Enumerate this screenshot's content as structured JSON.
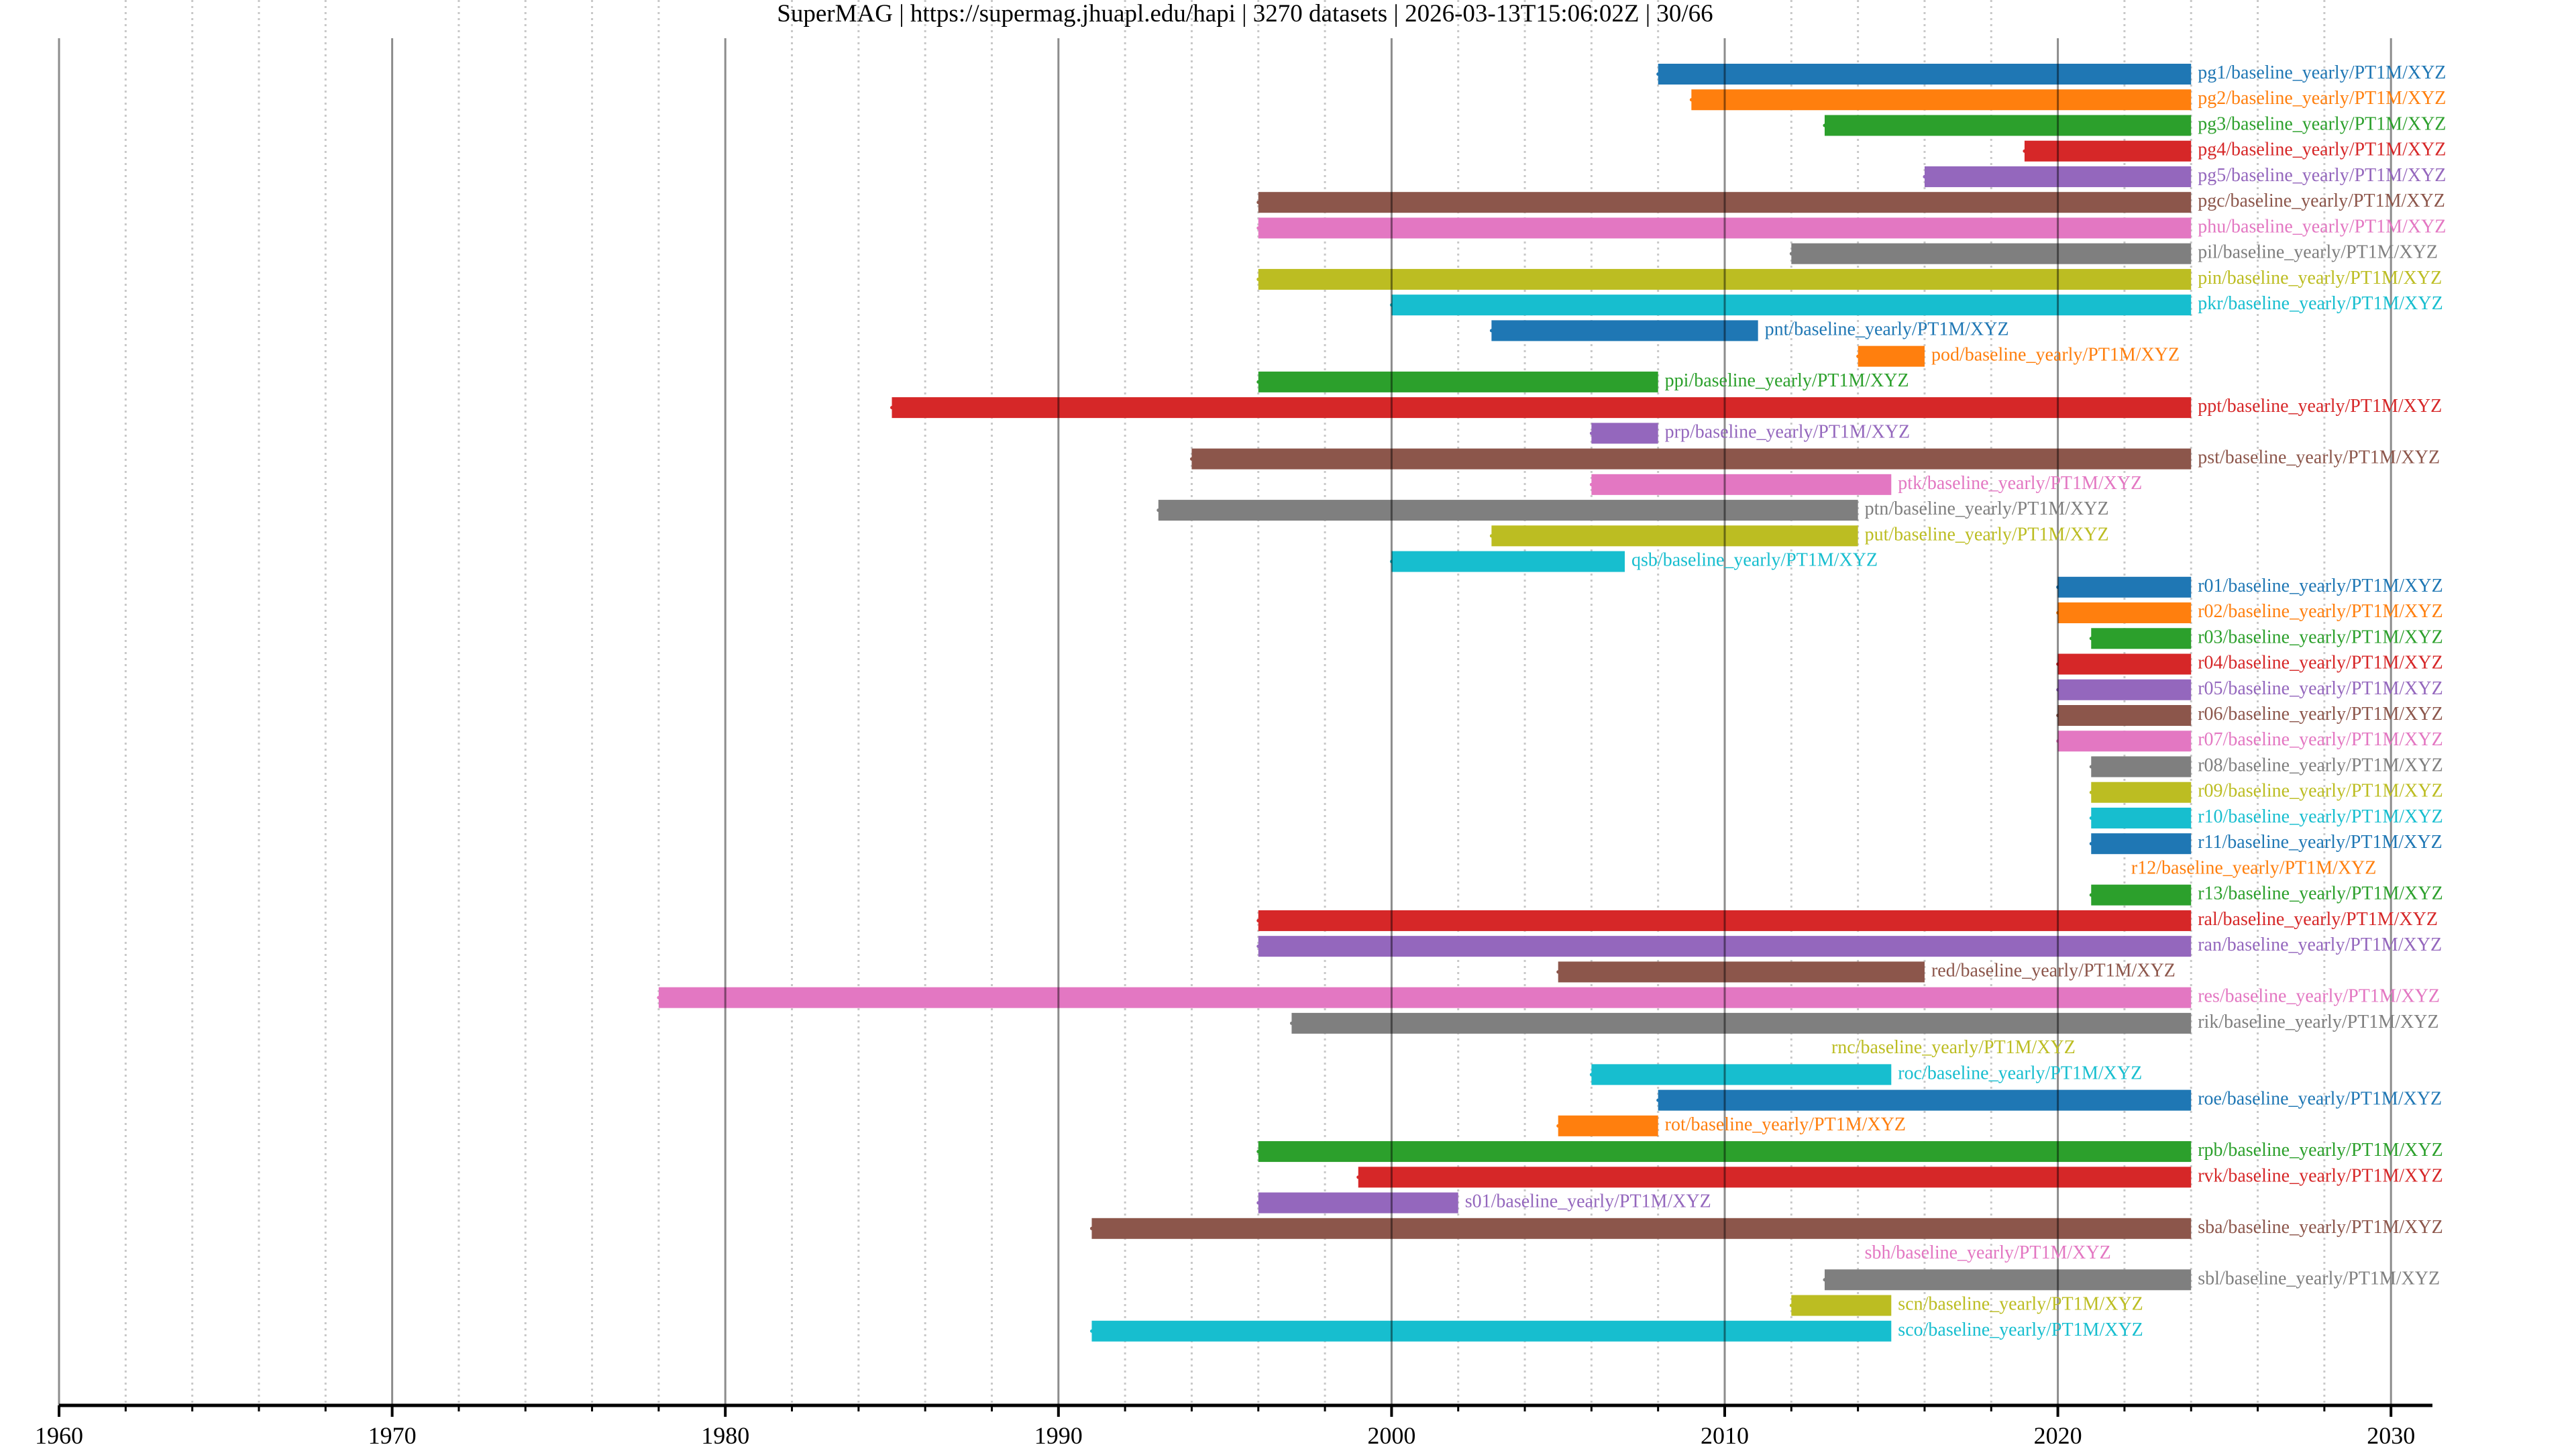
{
  "header": {
    "title": "SuperMAG | https://supermag.jhuapl.edu/hapi | 3270 datasets | 2026-03-13T15:06:02Z | 30/66"
  },
  "chart_data": {
    "type": "timeline",
    "title": "SuperMAG | https://supermag.jhuapl.edu/hapi | 3270 datasets | 2026-03-13T15:06:02Z | 30/66",
    "xlabel": "",
    "ylabel": "",
    "xlim": [
      1960,
      2031.5
    ],
    "x_major_ticks": [
      1960,
      1970,
      1980,
      1990,
      2000,
      2010,
      2020,
      2030
    ],
    "x_tick_labels": [
      "1960",
      "1970",
      "1980",
      "1990",
      "2000",
      "2010",
      "2020",
      "2030"
    ],
    "x_minor_tick_step": 2,
    "grid": true,
    "palette": [
      "#1f77b4",
      "#ff7f0e",
      "#2ca02c",
      "#d62728",
      "#9467bd",
      "#8c564b",
      "#e377c2",
      "#7f7f7f",
      "#bcbd22",
      "#17becf"
    ],
    "series": [
      {
        "name": "pg1/baseline_yearly/PT1M/XYZ",
        "start": 2008,
        "end": 2024
      },
      {
        "name": "pg2/baseline_yearly/PT1M/XYZ",
        "start": 2009,
        "end": 2024
      },
      {
        "name": "pg3/baseline_yearly/PT1M/XYZ",
        "start": 2013,
        "end": 2024
      },
      {
        "name": "pg4/baseline_yearly/PT1M/XYZ",
        "start": 2019,
        "end": 2024
      },
      {
        "name": "pg5/baseline_yearly/PT1M/XYZ",
        "start": 2016,
        "end": 2024
      },
      {
        "name": "pgc/baseline_yearly/PT1M/XYZ",
        "start": 1996,
        "end": 2024
      },
      {
        "name": "phu/baseline_yearly/PT1M/XYZ",
        "start": 1996,
        "end": 2024
      },
      {
        "name": "pil/baseline_yearly/PT1M/XYZ",
        "start": 2012,
        "end": 2024
      },
      {
        "name": "pin/baseline_yearly/PT1M/XYZ",
        "start": 1996,
        "end": 2024
      },
      {
        "name": "pkr/baseline_yearly/PT1M/XYZ",
        "start": 2000,
        "end": 2024
      },
      {
        "name": "pnt/baseline_yearly/PT1M/XYZ",
        "start": 2003,
        "end": 2011
      },
      {
        "name": "pod/baseline_yearly/PT1M/XYZ",
        "start": 2014,
        "end": 2016
      },
      {
        "name": "ppi/baseline_yearly/PT1M/XYZ",
        "start": 1996,
        "end": 2008
      },
      {
        "name": "ppt/baseline_yearly/PT1M/XYZ",
        "start": 1985,
        "end": 2024
      },
      {
        "name": "prp/baseline_yearly/PT1M/XYZ",
        "start": 2006,
        "end": 2008
      },
      {
        "name": "pst/baseline_yearly/PT1M/XYZ",
        "start": 1994,
        "end": 2024
      },
      {
        "name": "ptk/baseline_yearly/PT1M/XYZ",
        "start": 2006,
        "end": 2015
      },
      {
        "name": "ptn/baseline_yearly/PT1M/XYZ",
        "start": 1993,
        "end": 2014
      },
      {
        "name": "put/baseline_yearly/PT1M/XYZ",
        "start": 2003,
        "end": 2014
      },
      {
        "name": "qsb/baseline_yearly/PT1M/XYZ",
        "start": 2000,
        "end": 2007
      },
      {
        "name": "r01/baseline_yearly/PT1M/XYZ",
        "start": 2020,
        "end": 2024
      },
      {
        "name": "r02/baseline_yearly/PT1M/XYZ",
        "start": 2020,
        "end": 2024
      },
      {
        "name": "r03/baseline_yearly/PT1M/XYZ",
        "start": 2021,
        "end": 2024
      },
      {
        "name": "r04/baseline_yearly/PT1M/XYZ",
        "start": 2020,
        "end": 2024
      },
      {
        "name": "r05/baseline_yearly/PT1M/XYZ",
        "start": 2020,
        "end": 2024
      },
      {
        "name": "r06/baseline_yearly/PT1M/XYZ",
        "start": 2020,
        "end": 2024
      },
      {
        "name": "r07/baseline_yearly/PT1M/XYZ",
        "start": 2020,
        "end": 2024
      },
      {
        "name": "r08/baseline_yearly/PT1M/XYZ",
        "start": 2021,
        "end": 2024
      },
      {
        "name": "r09/baseline_yearly/PT1M/XYZ",
        "start": 2021,
        "end": 2024
      },
      {
        "name": "r10/baseline_yearly/PT1M/XYZ",
        "start": 2021,
        "end": 2024
      },
      {
        "name": "r11/baseline_yearly/PT1M/XYZ",
        "start": 2021,
        "end": 2024
      },
      {
        "name": "r12/baseline_yearly/PT1M/XYZ",
        "start": 2022,
        "end": 2022
      },
      {
        "name": "r13/baseline_yearly/PT1M/XYZ",
        "start": 2021,
        "end": 2024
      },
      {
        "name": "ral/baseline_yearly/PT1M/XYZ",
        "start": 1996,
        "end": 2024
      },
      {
        "name": "ran/baseline_yearly/PT1M/XYZ",
        "start": 1996,
        "end": 2024
      },
      {
        "name": "red/baseline_yearly/PT1M/XYZ",
        "start": 2005,
        "end": 2016
      },
      {
        "name": "res/baseline_yearly/PT1M/XYZ",
        "start": 1978,
        "end": 2024
      },
      {
        "name": "rik/baseline_yearly/PT1M/XYZ",
        "start": 1997,
        "end": 2024
      },
      {
        "name": "rnc/baseline_yearly/PT1M/XYZ",
        "start": 2013,
        "end": 2013
      },
      {
        "name": "roc/baseline_yearly/PT1M/XYZ",
        "start": 2006,
        "end": 2015
      },
      {
        "name": "roe/baseline_yearly/PT1M/XYZ",
        "start": 2008,
        "end": 2024
      },
      {
        "name": "rot/baseline_yearly/PT1M/XYZ",
        "start": 2005,
        "end": 2008
      },
      {
        "name": "rpb/baseline_yearly/PT1M/XYZ",
        "start": 1996,
        "end": 2024
      },
      {
        "name": "rvk/baseline_yearly/PT1M/XYZ",
        "start": 1999,
        "end": 2024
      },
      {
        "name": "s01/baseline_yearly/PT1M/XYZ",
        "start": 1996,
        "end": 2002
      },
      {
        "name": "sba/baseline_yearly/PT1M/XYZ",
        "start": 1991,
        "end": 2024
      },
      {
        "name": "sbh/baseline_yearly/PT1M/XYZ",
        "start": 2014,
        "end": 2014
      },
      {
        "name": "sbl/baseline_yearly/PT1M/XYZ",
        "start": 2013,
        "end": 2024
      },
      {
        "name": "scn/baseline_yearly/PT1M/XYZ",
        "start": 2012,
        "end": 2015
      },
      {
        "name": "sco/baseline_yearly/PT1M/XYZ",
        "start": 1991,
        "end": 2015
      }
    ]
  }
}
